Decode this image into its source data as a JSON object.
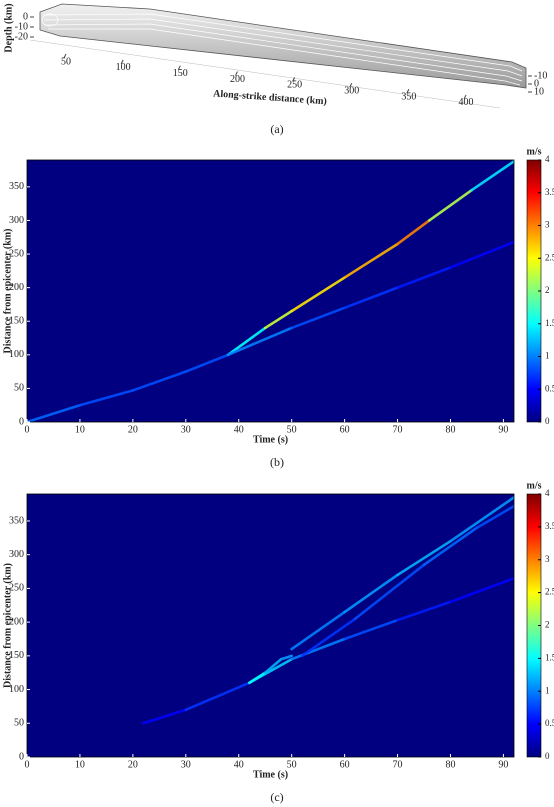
{
  "chart_data": [
    {
      "type": "surface3d",
      "caption": "(a)",
      "xlabel": "Along-strike distance (km)",
      "zlabel": "Depth (km)",
      "xlim": [
        30,
        440
      ],
      "xticks": [
        50,
        100,
        150,
        200,
        250,
        300,
        350,
        400
      ],
      "zlim": [
        -25,
        5
      ],
      "zticks": [
        0,
        -10,
        -20
      ],
      "yticks": [
        -10,
        0,
        10
      ]
    },
    {
      "type": "heatmap",
      "caption": "(b)",
      "xlabel": "Time (s)",
      "ylabel": "Distance from epicenter (km)",
      "colorbar_label": "m/s",
      "xlim": [
        0,
        92
      ],
      "xticks": [
        0,
        10,
        20,
        30,
        40,
        50,
        60,
        70,
        80,
        90
      ],
      "ylim": [
        0,
        390
      ],
      "yticks": [
        0,
        50,
        100,
        150,
        200,
        250,
        300,
        350
      ],
      "clim": [
        0,
        4
      ],
      "cticks": [
        0,
        0.5,
        1,
        1.5,
        2,
        2.5,
        3,
        3.5,
        4
      ],
      "colormap": "jet",
      "traces": [
        {
          "x": [
            0,
            10,
            20,
            30,
            38
          ],
          "y": [
            0,
            25,
            47,
            75,
            100
          ],
          "values": [
            0.9,
            0.8,
            0.8,
            0.8,
            1.0
          ]
        },
        {
          "x": [
            38,
            45,
            50,
            60,
            70,
            76,
            84,
            92
          ],
          "y": [
            100,
            140,
            165,
            215,
            265,
            300,
            345,
            388
          ],
          "values": [
            1.5,
            2.3,
            2.6,
            2.8,
            3.0,
            2.2,
            1.4,
            1.2
          ]
        },
        {
          "x": [
            38,
            50,
            60,
            70,
            80,
            92
          ],
          "y": [
            100,
            140,
            170,
            200,
            230,
            268
          ],
          "values": [
            1.0,
            0.8,
            0.7,
            0.6,
            0.5,
            0.4
          ]
        }
      ]
    },
    {
      "type": "heatmap",
      "caption": "(c)",
      "xlabel": "Time (s)",
      "ylabel": "Distance from epicenter (km)",
      "colorbar_label": "m/s",
      "xlim": [
        0,
        92
      ],
      "xticks": [
        0,
        10,
        20,
        30,
        40,
        50,
        60,
        70,
        80,
        90
      ],
      "ylim": [
        0,
        390
      ],
      "yticks": [
        0,
        50,
        100,
        150,
        200,
        250,
        300,
        350
      ],
      "clim": [
        0,
        4
      ],
      "cticks": [
        0,
        0.5,
        1,
        1.5,
        2,
        2.5,
        3,
        3.5,
        4
      ],
      "colormap": "jet",
      "traces": [
        {
          "x": [
            22,
            30,
            42,
            50,
            60,
            70,
            80,
            92
          ],
          "y": [
            50,
            70,
            110,
            145,
            175,
            203,
            230,
            265
          ],
          "values": [
            0.5,
            0.7,
            1.3,
            1.0,
            0.8,
            0.6,
            0.5,
            0.4
          ]
        },
        {
          "x": [
            42,
            45,
            48,
            50
          ],
          "y": [
            110,
            125,
            145,
            150
          ],
          "values": [
            1.5,
            1.2,
            1.1,
            0.9
          ]
        },
        {
          "x": [
            50,
            60,
            70,
            80,
            92
          ],
          "y": [
            160,
            215,
            270,
            320,
            385
          ],
          "values": [
            1.0,
            1.1,
            1.2,
            1.1,
            1.0
          ]
        },
        {
          "x": [
            52,
            62,
            75,
            85,
            92
          ],
          "y": [
            150,
            205,
            285,
            340,
            372
          ],
          "values": [
            0.7,
            0.8,
            0.9,
            0.8,
            0.7
          ]
        }
      ]
    }
  ]
}
